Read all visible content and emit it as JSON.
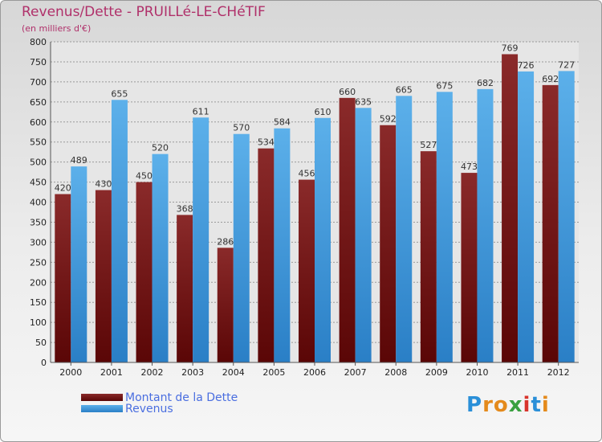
{
  "chart_data": {
    "type": "bar",
    "title": "Revenus/Dette - PRUILLé-LE-CHéTIF",
    "subtitle": "(en milliers d'€)",
    "categories": [
      "2000",
      "2001",
      "2002",
      "2003",
      "2004",
      "2005",
      "2006",
      "2007",
      "2008",
      "2009",
      "2010",
      "2011",
      "2012"
    ],
    "series": [
      {
        "name": "Montant de la Dette",
        "color": "#7a1a1a",
        "values": [
          420,
          430,
          450,
          368,
          286,
          534,
          456,
          660,
          592,
          527,
          473,
          769,
          692
        ]
      },
      {
        "name": "Revenus",
        "color": "#4a9fe0",
        "values": [
          489,
          655,
          520,
          611,
          570,
          584,
          610,
          635,
          665,
          675,
          682,
          726,
          727
        ]
      }
    ],
    "ylim": [
      0,
      800
    ],
    "yticks": [
      0,
      50,
      100,
      150,
      200,
      250,
      300,
      350,
      400,
      450,
      500,
      550,
      600,
      650,
      700,
      750,
      800
    ],
    "grid": true,
    "legend_position": "bottom-left"
  },
  "logo": {
    "letters": [
      "P",
      "r",
      "o",
      "x",
      "i",
      "t",
      "i"
    ],
    "colors": [
      "#2a8fd8",
      "#e48a1c",
      "#e48a1c",
      "#3aa040",
      "#d8342c",
      "#2a8fd8",
      "#e48a1c"
    ]
  }
}
